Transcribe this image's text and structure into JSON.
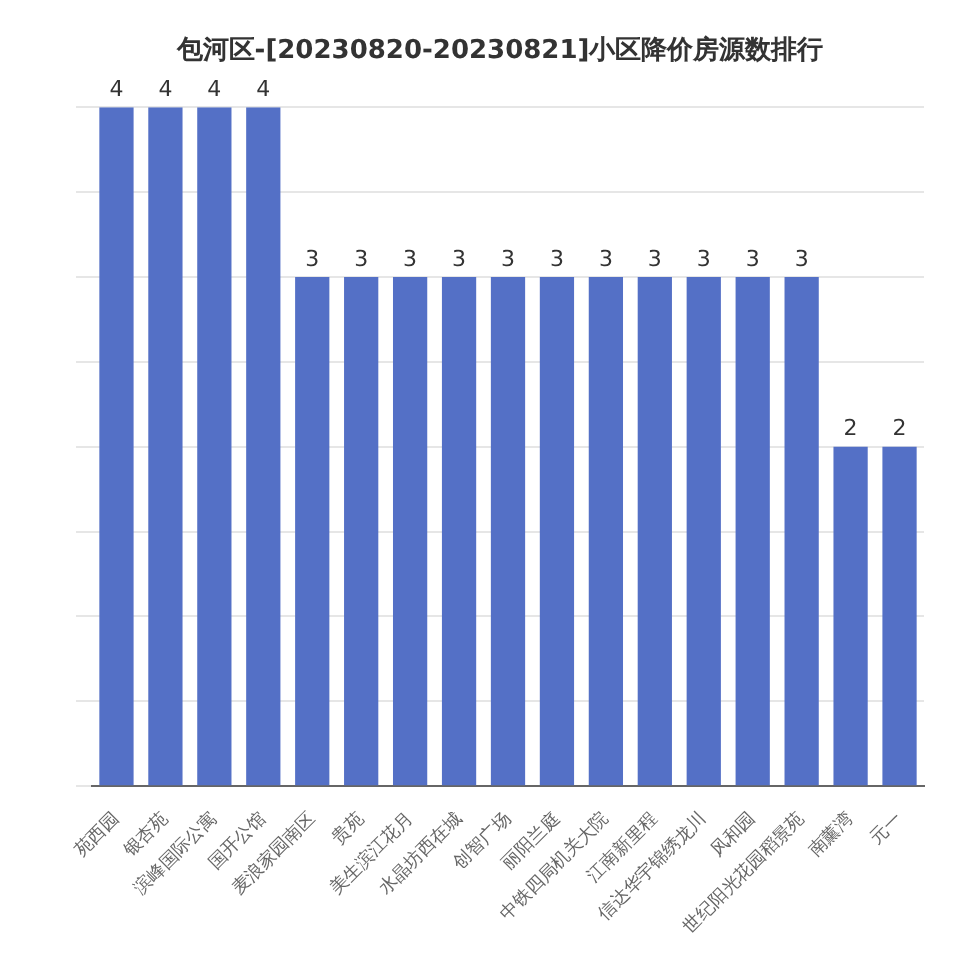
{
  "chart_data": {
    "type": "bar",
    "title": "包河区-[20230820-20230821]小区降价房源数排行",
    "categories": [
      "苑西园",
      "银杏苑",
      "滨峰国际公寓",
      "国开公馆",
      "麦浪家园南区",
      "贵苑",
      "美生滨江花月",
      "水晶坊西在城",
      "创智广场",
      "丽阳兰庭",
      "中铁四局机关大院",
      "江南新里程",
      "信达华宇锦绣龙川",
      "风和园",
      "世纪阳光花园稻景苑",
      "南薰湾",
      "元一"
    ],
    "values": [
      4,
      4,
      4,
      4,
      3,
      3,
      3,
      3,
      3,
      3,
      3,
      3,
      3,
      3,
      3,
      2,
      2
    ],
    "color": "#5470c6",
    "data_labels": true,
    "grid": "y",
    "tick_labels": "x"
  }
}
